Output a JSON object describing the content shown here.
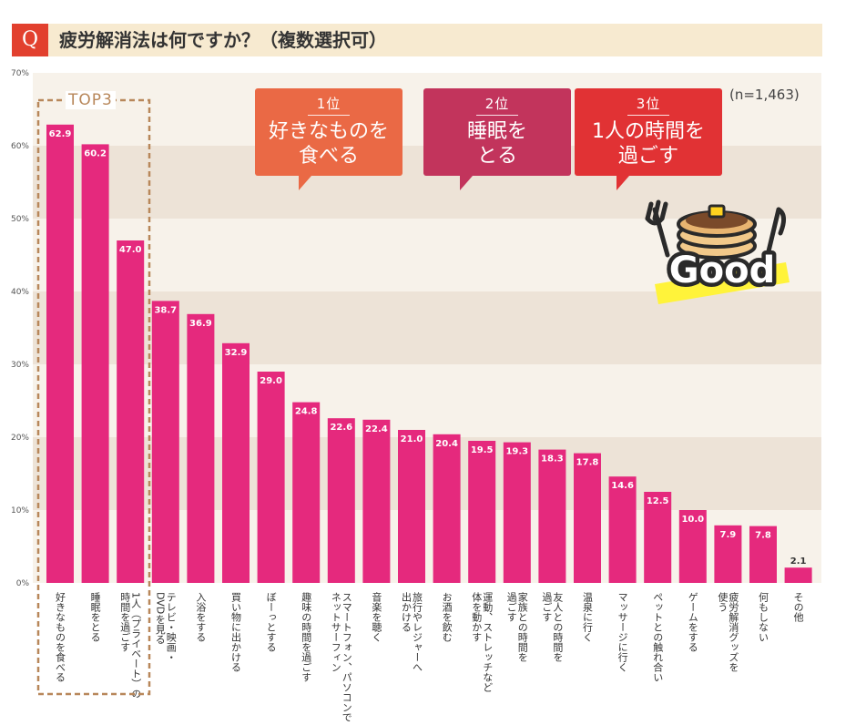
{
  "question": {
    "badge": "Q",
    "text": "疲労解消法は何ですか？（複数選択可）"
  },
  "sample_note": "(n=1,463)",
  "top3_label": "TOP3",
  "callouts": [
    {
      "rank": "1位",
      "text": "好きなものを\n食べる",
      "color": "#ea6945"
    },
    {
      "rank": "2位",
      "text": "睡眠を\nとる",
      "color": "#c2345c"
    },
    {
      "rank": "3位",
      "text": "1人の時間を\n過ごす",
      "color": "#e13234"
    }
  ],
  "good_badge": {
    "text": "Good",
    "icon": "pancake-with-fork-and-knife-icon"
  },
  "colors": {
    "bar": "#e5297d",
    "band_dark": "#ede3d7",
    "band_light": "#f7f2ea",
    "top3_frame": "#b8875a"
  },
  "chart_data": {
    "type": "bar",
    "ylim": [
      0,
      70
    ],
    "ytick_step": 10,
    "ytick_suffix": "%",
    "categories": [
      "好きなものを食べる",
      "睡眠をとる",
      "1人（プライベート）の時間を過ごす",
      "テレビ・映画・DVDを見る",
      "入浴をする",
      "買い物に出かける",
      "ぼーっとする",
      "趣味の時間を過ごす",
      "スマートフォン、パソコンでネットサーフィン",
      "音楽を聴く",
      "旅行やレジャーへ出かける",
      "お酒を飲む",
      "運動、ストレッチなど体を動かす",
      "家族との時間を過ごす",
      "友人との時間を過ごす",
      "温泉に行く",
      "マッサージに行く",
      "ペットとの触れ合い",
      "ゲームをする",
      "疲労解消グッズを使う",
      "何もしない",
      "その他"
    ],
    "values": [
      62.9,
      60.2,
      47.0,
      38.7,
      36.9,
      32.9,
      29.0,
      24.8,
      22.6,
      22.4,
      21.0,
      20.4,
      19.5,
      19.3,
      18.3,
      17.8,
      14.6,
      12.5,
      10.0,
      7.9,
      7.8,
      2.1
    ],
    "value_labels": [
      "62.9",
      "60.2",
      "47.0",
      "38.7",
      "36.9",
      "32.9",
      "29.0",
      "24.8",
      "22.6",
      "22.4",
      "21.0",
      "20.4",
      "19.5",
      "19.3",
      "18.3",
      "17.8",
      "14.6",
      "12.5",
      "10.0",
      "7.9",
      "7.8",
      "2.1"
    ],
    "x_label_columns": [
      [
        "好きなものを食べる"
      ],
      [
        "睡眠をとる"
      ],
      [
        "1人（プライベート）の",
        "時間を過ごす"
      ],
      [
        "テレビ・映画・",
        "DVDを見る"
      ],
      [
        "入浴をする"
      ],
      [
        "買い物に出かける"
      ],
      [
        "ぼーっとする"
      ],
      [
        "趣味の時間を過ごす"
      ],
      [
        "スマートフォン、パソコンで",
        "ネットサーフィン"
      ],
      [
        "音楽を聴く"
      ],
      [
        "旅行やレジャーへ",
        "出かける"
      ],
      [
        "お酒を飲む"
      ],
      [
        "運動、ストレッチなど",
        "体を動かす"
      ],
      [
        "家族との時間を",
        "過ごす"
      ],
      [
        "友人との時間を",
        "過ごす"
      ],
      [
        "温泉に行く"
      ],
      [
        "マッサージに行く"
      ],
      [
        "ペットとの触れ合い"
      ],
      [
        "ゲームをする"
      ],
      [
        "疲労解消グッズを",
        "使う"
      ],
      [
        "何もしない"
      ],
      [
        "その他"
      ]
    ],
    "grid": true,
    "background": "alternating horizontal bands every 10%",
    "highlight": {
      "label": "TOP3",
      "bars": [
        0,
        1,
        2
      ]
    }
  }
}
